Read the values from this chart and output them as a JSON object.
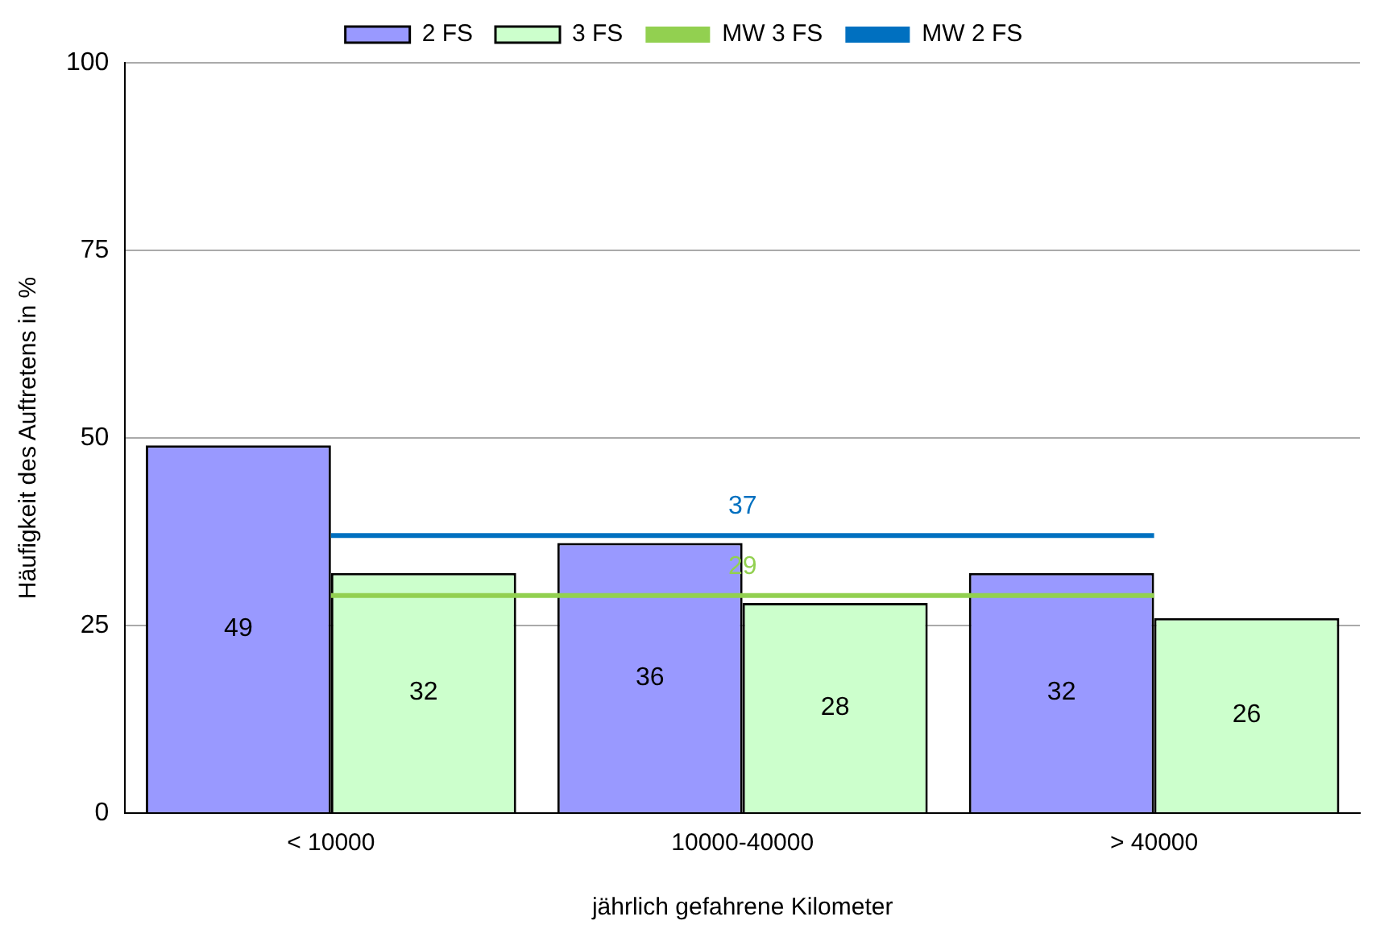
{
  "chart_data": {
    "type": "bar",
    "xlabel": "jährlich gefahrene Kilometer",
    "ylabel": "Häufigkeit des Auftretens in %",
    "categories": [
      "< 10000",
      "10000-40000",
      "> 40000"
    ],
    "series": [
      {
        "name": "2 FS",
        "color": "#9999ff",
        "values": [
          49,
          36,
          32
        ]
      },
      {
        "name": "3 FS",
        "color": "#ccffcc",
        "values": [
          32,
          28,
          26
        ]
      },
      {
        "name": "MW 3 FS",
        "type": "line",
        "color": "#92d050",
        "values": [
          29,
          29,
          29
        ],
        "value_labels": [
          null,
          "29",
          null
        ]
      },
      {
        "name": "MW 2 FS",
        "type": "line",
        "color": "#0070c0",
        "values": [
          37,
          37,
          37
        ],
        "value_labels": [
          null,
          "37",
          null
        ]
      }
    ],
    "ylim": [
      0,
      100
    ],
    "yticks": [
      0,
      25,
      50,
      75,
      100
    ],
    "grid": "y",
    "legend": "top",
    "data_labels": true,
    "marker": "none"
  }
}
